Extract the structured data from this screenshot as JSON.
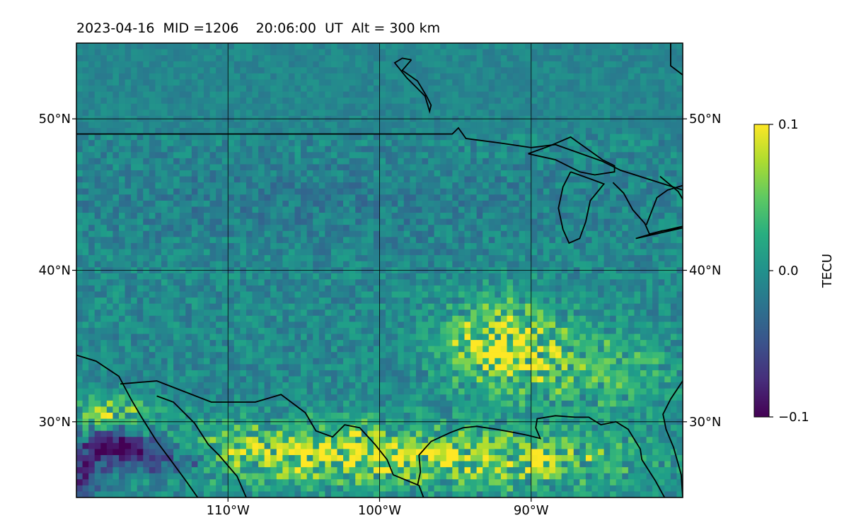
{
  "chart_data": {
    "type": "heatmap",
    "title": "2023-04-16  MID =1206    20:06:00  UT  Alt = 300 km",
    "date": "2023-04-16",
    "mid": "1206",
    "time": "20:06:00",
    "alt_km": 300,
    "projection": "geographic map (Plate Carrée)",
    "lon_range": [
      -120,
      -80
    ],
    "lat_range": [
      25,
      55
    ],
    "x_ticks": [
      {
        "value": -110,
        "label": "110°W"
      },
      {
        "value": -100,
        "label": "100°W"
      },
      {
        "value": -90,
        "label": "90°W"
      }
    ],
    "y_ticks": [
      {
        "value": 50,
        "label": "50°N"
      },
      {
        "value": 40,
        "label": "40°N"
      },
      {
        "value": 30,
        "label": "30°N"
      }
    ],
    "grid": true,
    "colormap": "viridis",
    "colorbar": {
      "label": "TECU",
      "min": -0.1,
      "max": 0.1,
      "ticks": [
        {
          "value": 0.1,
          "label": "0.1"
        },
        {
          "value": 0.0,
          "label": "0.0"
        },
        {
          "value": -0.1,
          "label": "−0.1"
        }
      ],
      "placement": "right"
    },
    "coastlines": true,
    "field_description": "pixelated TEC perturbation field; values mostly near 0 (green/teal) across the map, strong positive (yellow) patches along the southern edge near 25–32°N and south-central around 32–37°N, 95–90°W; strong negative (dark purple) patches near 27–30°N, 118–113°W"
  }
}
